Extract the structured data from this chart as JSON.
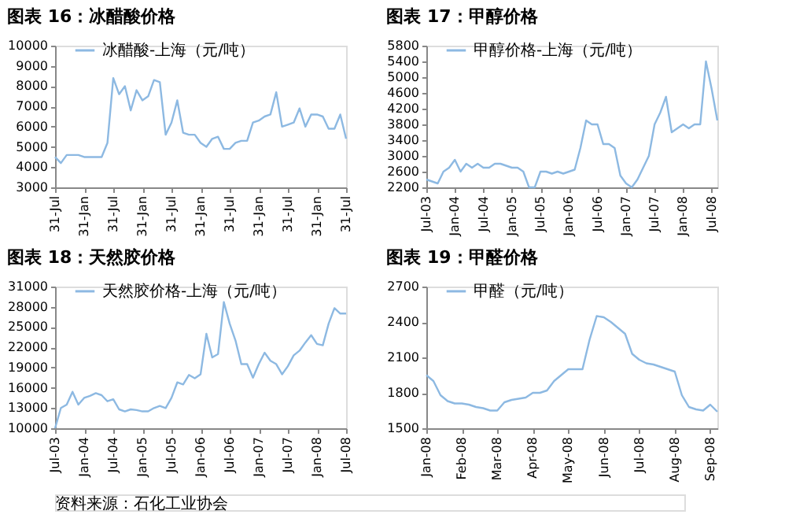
{
  "chart_data": [
    {
      "type": "line",
      "title": "图表 16：冰醋酸价格",
      "categories": [
        "31-Jul",
        null,
        null,
        null,
        null,
        "31-Jan",
        null,
        null,
        null,
        null,
        "31-Jul",
        null,
        null,
        null,
        null,
        "31-Jan",
        null,
        null,
        null,
        null,
        "31-Jul",
        null,
        null,
        null,
        null,
        "31-Jan",
        null,
        null,
        null,
        null,
        "31-Jul",
        null,
        null,
        null,
        null,
        "31-Jan",
        null,
        null,
        null,
        null,
        "31-Jul",
        null,
        null,
        null,
        null,
        "31-Jan",
        null,
        null,
        null,
        null,
        "31-Jul"
      ],
      "series": [
        {
          "name": "冰醋酸-上海（元/吨）",
          "color": "#8db9e2",
          "values": [
            4500,
            4200,
            4600,
            4600,
            4600,
            4500,
            4500,
            4500,
            4500,
            5200,
            8400,
            7600,
            8000,
            6800,
            7800,
            7300,
            7500,
            8300,
            8200,
            5600,
            6200,
            7300,
            5700,
            5600,
            5600,
            5200,
            5000,
            5400,
            5500,
            4900,
            4900,
            5200,
            5300,
            5300,
            6200,
            6300,
            6500,
            6600,
            7700,
            6000,
            6100,
            6200,
            6900,
            6000,
            6600,
            6600,
            6500,
            5900,
            5900,
            6600,
            5400
          ]
        }
      ],
      "ylim": [
        3000,
        10000
      ],
      "yticks": [
        3000,
        4000,
        5000,
        6000,
        7000,
        8000,
        9000,
        10000
      ],
      "grid": false,
      "legend": "top left",
      "marker": "none",
      "line_style": "solid"
    },
    {
      "type": "line",
      "title": "图表 17：甲醇价格",
      "categories": [
        "Jul-03",
        null,
        null,
        null,
        null,
        "Jan-04",
        null,
        null,
        null,
        null,
        "Jul-04",
        null,
        null,
        null,
        null,
        "Jan-05",
        null,
        null,
        null,
        null,
        "Jul-05",
        null,
        null,
        null,
        null,
        "Jan-06",
        null,
        null,
        null,
        null,
        "Jul-06",
        null,
        null,
        null,
        null,
        "Jan-07",
        null,
        null,
        null,
        null,
        "Jul-07",
        null,
        null,
        null,
        null,
        "Jan-08",
        null,
        null,
        null,
        null,
        "Jul-08",
        null
      ],
      "series": [
        {
          "name": "甲醇价格-上海（元/吨）",
          "color": "#8db9e2",
          "values": [
            2400,
            2350,
            2300,
            2600,
            2700,
            2900,
            2600,
            2800,
            2700,
            2800,
            2700,
            2700,
            2800,
            2800,
            2750,
            2700,
            2700,
            2600,
            2200,
            2200,
            2600,
            2600,
            2550,
            2600,
            2550,
            2600,
            2650,
            3200,
            3900,
            3800,
            3800,
            3300,
            3300,
            3200,
            2500,
            2300,
            2200,
            2400,
            2700,
            3000,
            3800,
            4100,
            4500,
            3600,
            3700,
            3800,
            3700,
            3800,
            3800,
            5400,
            4700,
            3900
          ]
        }
      ],
      "ylim": [
        2200,
        5800
      ],
      "yticks": [
        2200,
        2600,
        3000,
        3400,
        3800,
        4200,
        4600,
        5000,
        5400,
        5800
      ],
      "grid": false,
      "legend": "top left",
      "marker": "none",
      "line_style": "solid"
    },
    {
      "type": "line",
      "title": "图表 18：天然胶价格",
      "categories": [
        "Jul-03",
        null,
        null,
        null,
        null,
        "Jan-04",
        null,
        null,
        null,
        null,
        "Jul-04",
        null,
        null,
        null,
        null,
        "Jan-05",
        null,
        null,
        null,
        null,
        "Jul-05",
        null,
        null,
        null,
        null,
        "Jan-06",
        null,
        null,
        null,
        null,
        "Jul-06",
        null,
        null,
        null,
        null,
        "Jan-07",
        null,
        null,
        null,
        null,
        "Jul-07",
        null,
        null,
        null,
        null,
        "Jan-08",
        null,
        null,
        null,
        null,
        "Jul-08"
      ],
      "series": [
        {
          "name": "天然胶价格-上海（元/吨）",
          "color": "#8db9e2",
          "values": [
            10000,
            13000,
            13500,
            15400,
            13500,
            14500,
            14800,
            15200,
            14900,
            14000,
            14300,
            12800,
            12500,
            12800,
            12700,
            12500,
            12500,
            13000,
            13300,
            13000,
            14500,
            16800,
            16500,
            17900,
            17400,
            18000,
            24000,
            20500,
            21000,
            28700,
            25500,
            23000,
            19500,
            19500,
            17500,
            19500,
            21200,
            20000,
            19500,
            18000,
            19200,
            20800,
            21500,
            22700,
            23800,
            22500,
            22300,
            25500,
            27800,
            27000,
            27000
          ]
        }
      ],
      "ylim": [
        10000,
        31000
      ],
      "yticks": [
        10000,
        13000,
        16000,
        19000,
        22000,
        25000,
        28000,
        31000
      ],
      "grid": false,
      "legend": "top left",
      "marker": "none",
      "line_style": "solid"
    },
    {
      "type": "line",
      "title": "图表 19：甲醛价格",
      "categories": [
        "Jan-08",
        null,
        null,
        null,
        null,
        "Feb-08",
        null,
        null,
        null,
        null,
        "Mar-08",
        null,
        null,
        null,
        null,
        "Apr-08",
        null,
        null,
        null,
        null,
        "May-08",
        null,
        null,
        null,
        null,
        "Jun-08",
        null,
        null,
        null,
        null,
        "Jul-08",
        null,
        null,
        null,
        null,
        "Aug-08",
        null,
        null,
        null,
        null,
        "Sep-08",
        null
      ],
      "series": [
        {
          "name": "甲醛（元/吨）",
          "color": "#8db9e2",
          "values": [
            1950,
            1900,
            1780,
            1730,
            1710,
            1710,
            1700,
            1680,
            1670,
            1650,
            1650,
            1720,
            1740,
            1750,
            1760,
            1800,
            1800,
            1820,
            1900,
            1950,
            2000,
            2000,
            2000,
            2250,
            2450,
            2440,
            2400,
            2350,
            2300,
            2130,
            2080,
            2050,
            2040,
            2020,
            2000,
            1980,
            1780,
            1680,
            1660,
            1650,
            1700,
            1640
          ]
        }
      ],
      "ylim": [
        1500,
        2700
      ],
      "yticks": [
        1500,
        1800,
        2100,
        2400,
        2700
      ],
      "grid": false,
      "legend": "top left",
      "marker": "none",
      "line_style": "solid",
      "annotations": [
        "资料来源：石化工业协会"
      ]
    }
  ]
}
